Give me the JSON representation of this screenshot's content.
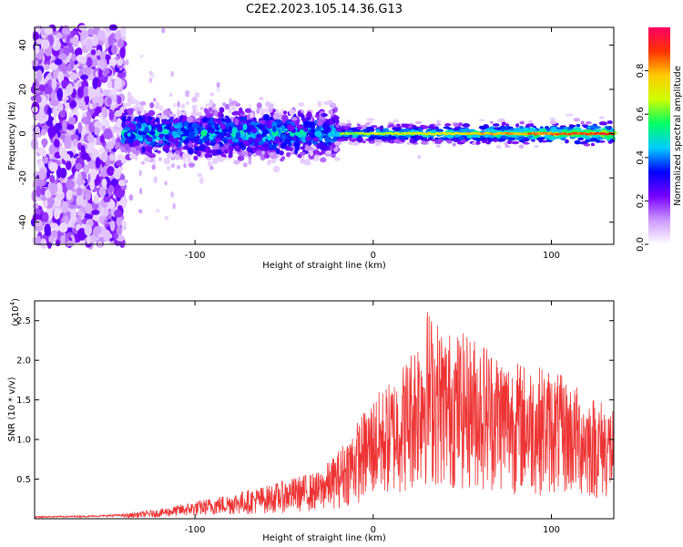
{
  "chart_data": [
    {
      "type": "heatmap",
      "title": "C2E2.2023.105.14.36.G13",
      "xlabel": "Height of straight line (km)",
      "ylabel": "Frequency (Hz)",
      "xlim": [
        -190,
        135
      ],
      "ylim": [
        -50,
        48
      ],
      "xticks": [
        -100,
        0,
        100
      ],
      "xtick_labels": [
        "-100",
        "0",
        "100"
      ],
      "yticks": [
        -40,
        -20,
        0,
        20,
        40
      ],
      "ytick_labels": [
        "-40",
        "-20",
        "0",
        "20",
        "40"
      ],
      "colorbar": {
        "label": "Normalized spectral amplitude",
        "range": [
          0.0,
          1.0
        ],
        "ticks": [
          0.0,
          0.2,
          0.4,
          0.6,
          0.8
        ],
        "tick_labels": [
          "0.0",
          "0.2",
          "0.4",
          "0.6",
          "0.8"
        ],
        "colors": [
          "#ffffff",
          "#cc99ff",
          "#7700ff",
          "#0000ff",
          "#00ccff",
          "#00ff66",
          "#ccff00",
          "#ffcc00",
          "#ff3300",
          "#ff0066"
        ]
      },
      "regions": [
        {
          "x_range": [
            -190,
            -140
          ],
          "description": "broadband scattered purple noise",
          "freq_spread": 48
        },
        {
          "x_range": [
            -140,
            -20
          ],
          "description": "noisy band centred at 0 Hz",
          "freq_spread": 10
        },
        {
          "x_range": [
            -20,
            135
          ],
          "description": "narrow strong line at 0 Hz",
          "freq_spread": 4
        }
      ],
      "line_frequency": 0
    },
    {
      "type": "line",
      "xlabel": "Height of straight line (km)",
      "ylabel": "SNR (10 * v/v)",
      "scale_note": "(x10",
      "scale_exp": "4",
      "scale_close": ")",
      "xlim": [
        -190,
        135
      ],
      "ylim": [
        0,
        2.75
      ],
      "xticks": [
        -100,
        0,
        100
      ],
      "xtick_labels": [
        "-100",
        "0",
        "100"
      ],
      "yticks": [
        0.5,
        1.0,
        1.5,
        2.0,
        2.5
      ],
      "ytick_labels": [
        "0.5",
        "1.0",
        "1.5",
        "2.0",
        "2.5"
      ],
      "series": [
        {
          "name": "SNR",
          "color": "#ee3333"
        }
      ],
      "envelope": {
        "x": [
          -190,
          -160,
          -140,
          -120,
          -100,
          -80,
          -60,
          -40,
          -30,
          -20,
          -10,
          0,
          10,
          20,
          30,
          40,
          60,
          80,
          100,
          120,
          135
        ],
        "y": [
          0.03,
          0.04,
          0.06,
          0.12,
          0.22,
          0.32,
          0.42,
          0.55,
          0.6,
          0.85,
          1.2,
          1.55,
          1.75,
          2.1,
          2.7,
          2.4,
          2.3,
          2.0,
          1.9,
          1.6,
          1.45
        ]
      }
    }
  ]
}
